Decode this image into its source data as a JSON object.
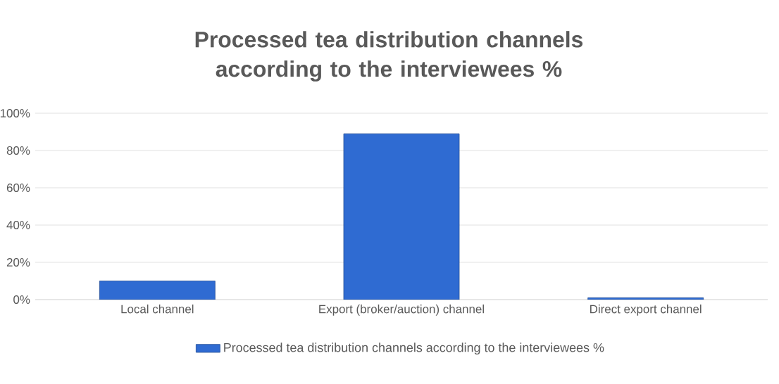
{
  "chart_data": {
    "type": "bar",
    "title": "Processed tea distribution channels according to the interviewees %",
    "categories": [
      "Local channel",
      "Export (broker/auction) channel",
      "Direct export channel"
    ],
    "series": [
      {
        "name": "Processed tea distribution channels according to the interviewees %",
        "color": "#2f6bd2",
        "values": [
          10,
          89,
          1
        ]
      }
    ],
    "ylim": [
      0,
      100
    ],
    "yticks": [
      {
        "value": 0,
        "label": "0%"
      },
      {
        "value": 20,
        "label": "20%"
      },
      {
        "value": 40,
        "label": "40%"
      },
      {
        "value": 60,
        "label": "60%"
      },
      {
        "value": 80,
        "label": "80%"
      },
      {
        "value": 100,
        "label": "100%"
      }
    ],
    "grid": "y",
    "legend": "bottom"
  }
}
